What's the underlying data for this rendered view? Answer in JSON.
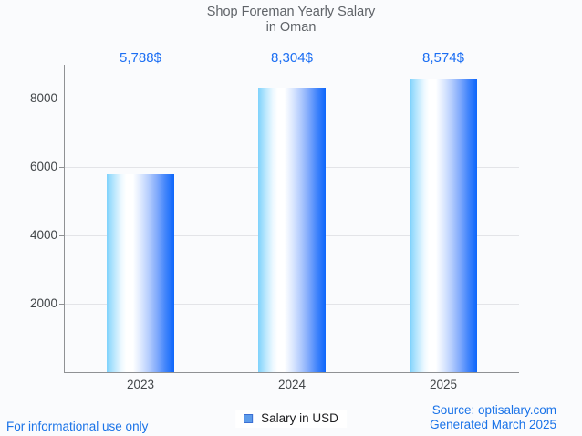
{
  "title": {
    "line1": "Shop Foreman Yearly Salary",
    "line2": "in Oman"
  },
  "chart_data": {
    "type": "bar",
    "title": "Shop Foreman Yearly Salary in Oman",
    "categories": [
      "2023",
      "2024",
      "2025"
    ],
    "values": [
      5788,
      8304,
      8574
    ],
    "value_labels": [
      "5,788$",
      "8,304$",
      "8,574$"
    ],
    "series_name": "Salary in USD",
    "xlabel": "",
    "ylabel": "",
    "ylim": [
      0,
      9000
    ],
    "yticks": [
      2000,
      4000,
      6000,
      8000
    ],
    "grid": true,
    "legend_position": "bottom"
  },
  "legend": {
    "label": "Salary in USD"
  },
  "footer": {
    "left": "For informational use only",
    "source": "Source: optisalary.com",
    "generated": "Generated March 2025"
  },
  "colors": {
    "background": "#fafbfd",
    "title_text": "#5f6368",
    "value_text": "#1b6ef3",
    "tick_text": "#424649",
    "axis_line": "#8f9194",
    "grid_line": "#e3e4e8",
    "bar_left": "#7ed2fc",
    "bar_mid": "#ffffff",
    "bar_right": "#0d66fb",
    "legend_fill": "#5d9cea",
    "legend_border": "#3c6fd3",
    "footer_text": "#1a73e8"
  }
}
